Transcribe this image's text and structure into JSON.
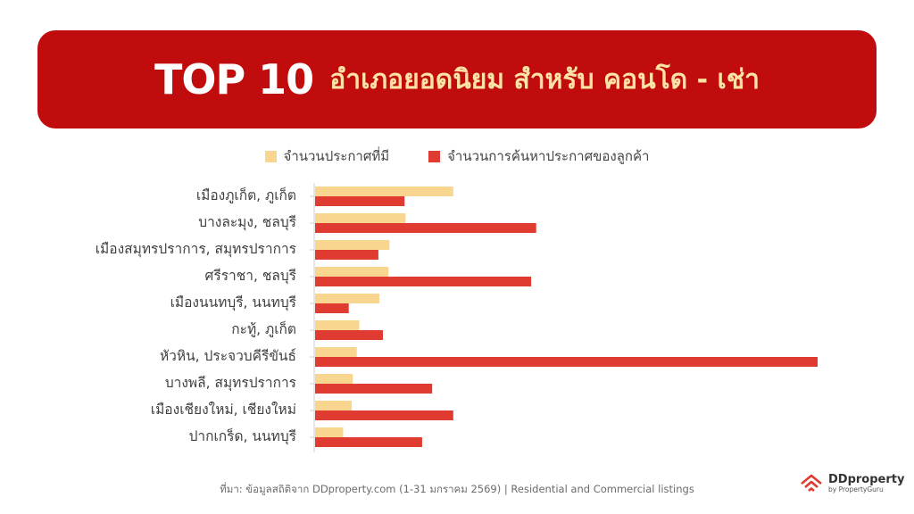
{
  "banner": {
    "top": "TOP 10",
    "subtitle": "อำเภอยอดนิยม สำหรับ คอนโด - เช่า"
  },
  "colors": {
    "banner_bg": "#c00c0c",
    "listings": "#f9d68f",
    "searches": "#df3b30"
  },
  "chart_data": {
    "type": "bar",
    "orientation": "horizontal",
    "categories": [
      "เมืองภูเก็ต, ภูเก็ต",
      "บางละมุง, ชลบุรี",
      "เมืองสมุทรปราการ, สมุทรปราการ",
      "ศรีราชา, ชลบุรี",
      "เมืองนนทบุรี, นนทบุรี",
      "กะทู้, ภูเก็ต",
      "หัวหิน, ประจวบคีรีขันธ์",
      "บางพลี, สมุทรปราการ",
      "เมืองเชียงใหม่, เชียงใหม่",
      "ปากเกร็ด, นนทบุรี"
    ],
    "series": [
      {
        "name": "จำนวนประกาศที่มี",
        "values": [
          27.5,
          18,
          14.8,
          14.6,
          12.8,
          8.8,
          8.3,
          7.5,
          7.3,
          5.6
        ]
      },
      {
        "name": "จำนวนการค้นหาประกาศของลูกค้า",
        "values": [
          17.8,
          44,
          12.6,
          43,
          6.7,
          13.5,
          100,
          23.3,
          27.5,
          21.3
        ]
      }
    ],
    "xlim": [
      0,
      100
    ],
    "grid": false,
    "legend": "top-center",
    "axis_labels_shown": false
  },
  "footer": {
    "source": "ที่มา: ข้อมูลสถิติจาก DDproperty.com (1-31 มกราคม 2569) | Residential and Commercial listings",
    "logo_main": "DDproperty",
    "logo_sub": "by PropertyGuru",
    "logo_icon": "ddproperty-house-logo-icon"
  }
}
